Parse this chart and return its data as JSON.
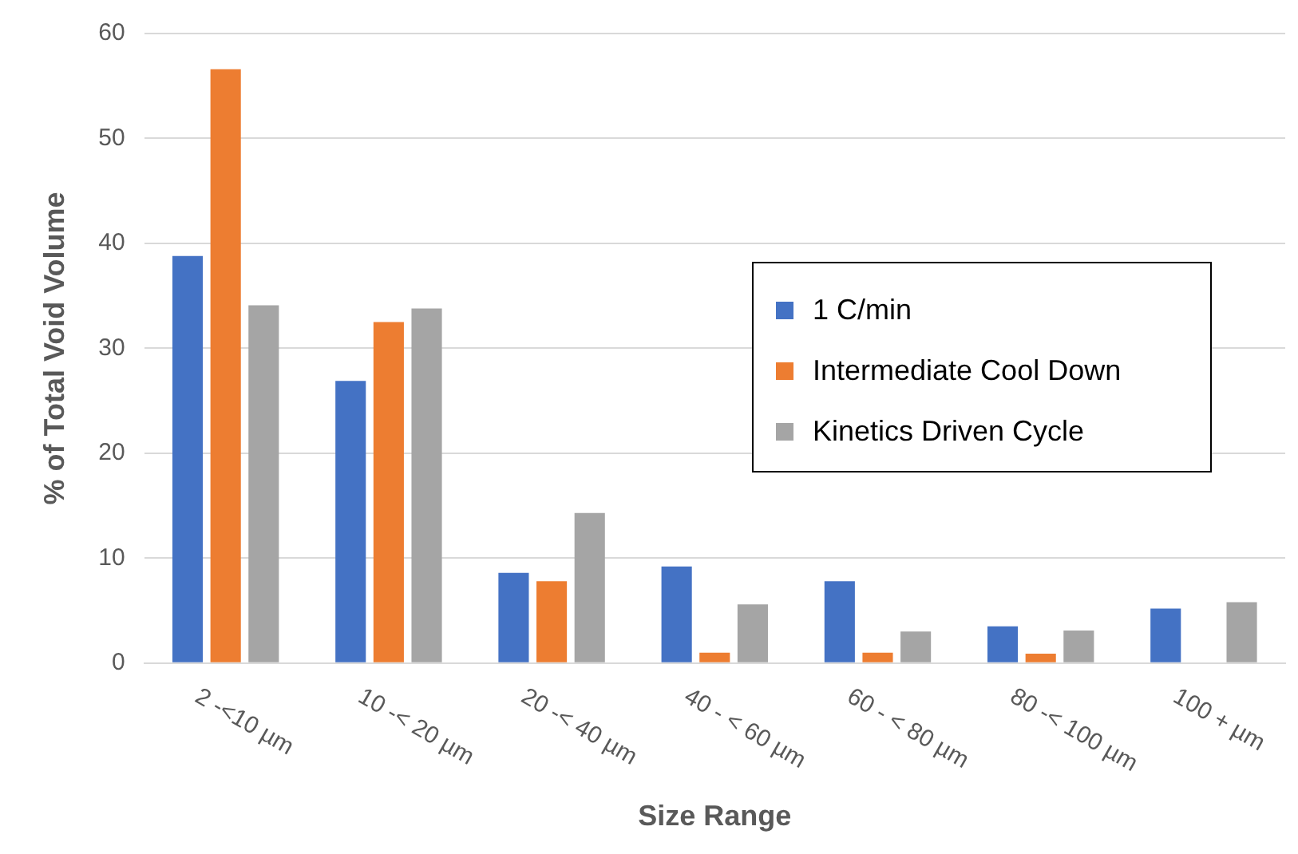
{
  "chart_data": {
    "type": "bar",
    "xlabel": "Size Range",
    "ylabel": "% of Total Void Volume",
    "categories": [
      "2 -<10 µm",
      "10 -< 20 µm",
      "20 -< 40 µm",
      "40 - < 60 µm",
      "60 - < 80 µm",
      "80 -< 100 µm",
      "100 + µm"
    ],
    "series": [
      {
        "name": "1 C/min",
        "color": "#4472c4",
        "values": [
          38.8,
          26.9,
          8.6,
          9.2,
          7.8,
          3.5,
          5.2
        ]
      },
      {
        "name": "Intermediate Cool Down",
        "color": "#ed7d31",
        "values": [
          56.6,
          32.5,
          7.8,
          1.0,
          1.0,
          0.9,
          null
        ]
      },
      {
        "name": "Kinetics Driven Cycle",
        "color": "#a5a5a5",
        "values": [
          34.1,
          33.8,
          14.3,
          5.6,
          3.0,
          3.1,
          5.8
        ]
      }
    ],
    "ylim": [
      0,
      60
    ],
    "yticks": [
      0,
      10,
      20,
      30,
      40,
      50,
      60
    ],
    "grid": "y",
    "legend": "right"
  }
}
